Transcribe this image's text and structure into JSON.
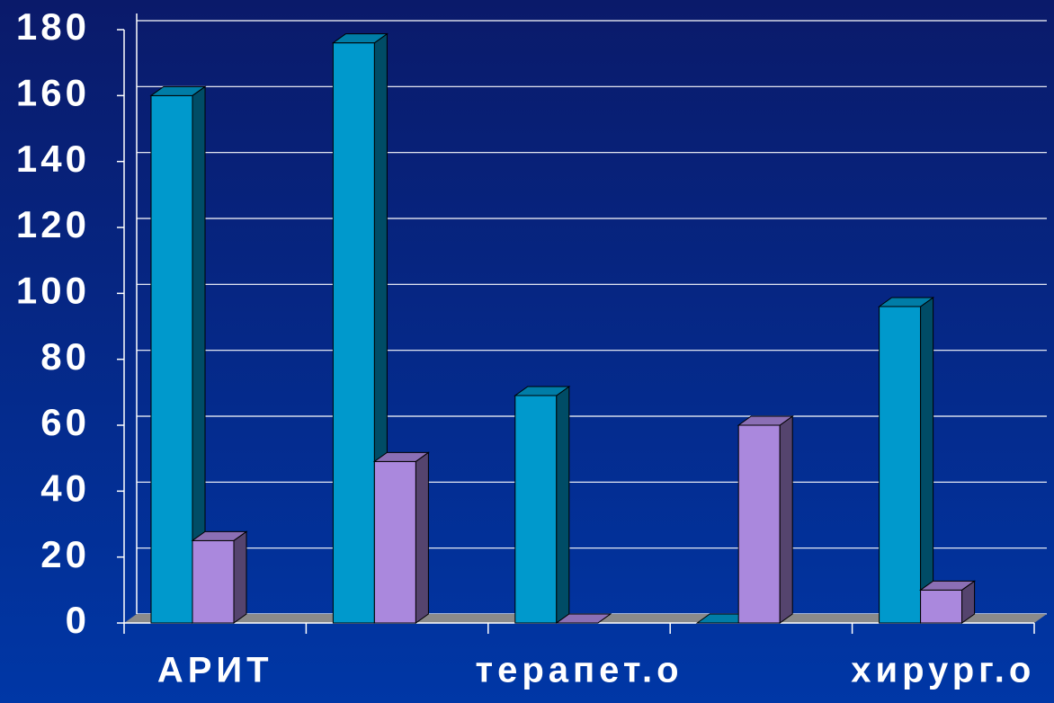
{
  "chart_data": {
    "type": "bar3d",
    "categories": [
      "АРИТ",
      null,
      "терапет.о",
      null,
      "хирург.о"
    ],
    "series": [
      {
        "color": "#0099cc",
        "values": [
          160,
          176,
          69,
          0,
          96
        ]
      },
      {
        "color": "#aa88dd",
        "values": [
          25,
          49,
          0,
          60,
          10
        ]
      }
    ],
    "ylim": [
      0,
      180
    ],
    "yticks": [
      0,
      20,
      40,
      60,
      80,
      100,
      120,
      140,
      160,
      180
    ],
    "grid": true
  }
}
